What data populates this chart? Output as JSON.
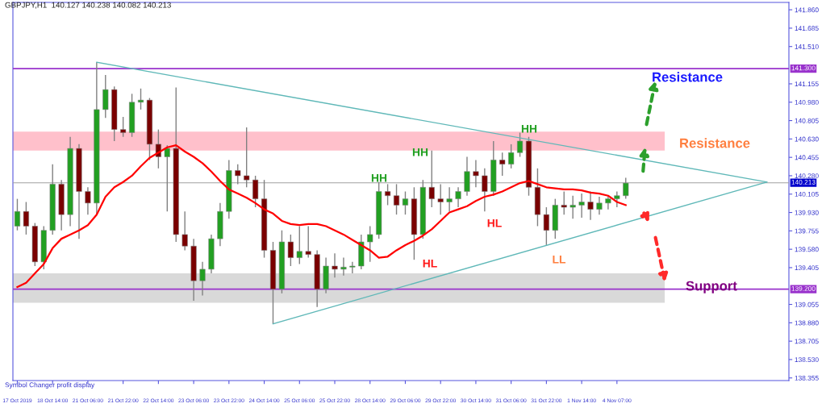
{
  "chart_data": {
    "type": "candlestick",
    "title": "GBPJPY,H1  140.127 140.238 140.082 140.213",
    "categories": [
      "17 Oct 2019",
      null,
      null,
      null,
      "18 Oct 14:00",
      null,
      null,
      null,
      "21 Oct 06:00",
      null,
      null,
      null,
      "21 Oct 22:00",
      null,
      null,
      null,
      "22 Oct 14:00",
      null,
      null,
      null,
      "23 Oct 06:00",
      null,
      null,
      null,
      "23 Oct 22:00",
      null,
      null,
      null,
      "24 Oct 14:00",
      null,
      null,
      null,
      "25 Oct 06:00",
      null,
      null,
      null,
      "25 Oct 22:00",
      null,
      null,
      null,
      "28 Oct 14:00",
      null,
      null,
      null,
      "29 Oct 06:00",
      null,
      null,
      null,
      "29 Oct 22:00",
      null,
      null,
      null,
      "30 Oct 14:00",
      null,
      null,
      null,
      "31 Oct 06:00",
      null,
      null,
      null,
      "31 Oct 22:00",
      null,
      null,
      null,
      "1 Nov 14:00",
      null,
      null,
      null,
      "4 Nov 07:00",
      null,
      null,
      null,
      null,
      null,
      null,
      null,
      null,
      null,
      null,
      null,
      null,
      null,
      null,
      null,
      null,
      null,
      null,
      null
    ],
    "ohlc": [
      [
        139.8,
        140.06,
        139.76,
        139.94
      ],
      [
        139.94,
        140.03,
        139.72,
        139.8
      ],
      [
        139.8,
        139.83,
        139.42,
        139.46
      ],
      [
        139.46,
        139.8,
        139.39,
        139.76
      ],
      [
        139.76,
        140.39,
        139.72,
        140.2
      ],
      [
        140.2,
        140.24,
        139.76,
        139.91
      ],
      [
        139.91,
        140.65,
        139.8,
        140.54
      ],
      [
        140.54,
        140.58,
        139.68,
        140.13
      ],
      [
        140.13,
        140.17,
        139.91,
        140.02
      ],
      [
        140.02,
        141.36,
        139.91,
        140.91
      ],
      [
        140.91,
        141.24,
        140.83,
        141.1
      ],
      [
        141.1,
        141.13,
        140.61,
        140.72
      ],
      [
        140.72,
        140.84,
        140.65,
        140.69
      ],
      [
        140.69,
        141.06,
        140.65,
        140.98
      ],
      [
        140.98,
        141.11,
        140.91,
        141.0
      ],
      [
        141.0,
        141.02,
        140.43,
        140.58
      ],
      [
        140.58,
        140.72,
        140.35,
        140.46
      ],
      [
        140.46,
        140.57,
        139.94,
        140.54
      ],
      [
        140.54,
        141.12,
        139.65,
        139.72
      ],
      [
        139.72,
        139.94,
        139.57,
        139.61
      ],
      [
        139.61,
        139.68,
        139.09,
        139.28
      ],
      [
        139.28,
        139.46,
        139.14,
        139.39
      ],
      [
        139.39,
        139.72,
        139.35,
        139.68
      ],
      [
        139.68,
        140.02,
        139.61,
        139.94
      ],
      [
        139.94,
        140.43,
        139.87,
        140.33
      ],
      [
        140.33,
        140.39,
        140.2,
        140.28
      ],
      [
        140.28,
        140.74,
        140.17,
        140.24
      ],
      [
        140.24,
        140.28,
        139.98,
        140.06
      ],
      [
        140.06,
        140.24,
        139.5,
        139.57
      ],
      [
        139.57,
        139.65,
        138.87,
        139.2
      ],
      [
        139.2,
        139.76,
        139.16,
        139.65
      ],
      [
        139.65,
        139.72,
        139.42,
        139.5
      ],
      [
        139.5,
        139.8,
        139.44,
        139.56
      ],
      [
        139.56,
        139.8,
        139.5,
        139.53
      ],
      [
        139.53,
        139.57,
        139.03,
        139.2
      ],
      [
        139.2,
        139.5,
        139.16,
        139.42
      ],
      [
        139.42,
        139.54,
        139.31,
        139.39
      ],
      [
        139.39,
        139.5,
        139.33,
        139.41
      ],
      [
        139.41,
        139.46,
        139.35,
        139.42
      ],
      [
        139.42,
        139.72,
        139.39,
        139.65
      ],
      [
        139.65,
        139.8,
        139.46,
        139.72
      ],
      [
        139.72,
        140.22,
        139.68,
        140.13
      ],
      [
        140.13,
        140.2,
        140.0,
        140.09
      ],
      [
        140.09,
        140.2,
        139.91,
        140.0
      ],
      [
        140.0,
        140.13,
        139.91,
        140.06
      ],
      [
        140.06,
        140.17,
        139.48,
        139.72
      ],
      [
        139.72,
        140.24,
        139.68,
        140.17
      ],
      [
        140.17,
        140.52,
        139.98,
        140.06
      ],
      [
        140.06,
        140.2,
        139.91,
        140.03
      ],
      [
        140.03,
        140.17,
        139.94,
        140.06
      ],
      [
        140.06,
        140.17,
        139.98,
        140.13
      ],
      [
        140.13,
        140.46,
        140.09,
        140.32
      ],
      [
        140.32,
        140.43,
        140.17,
        140.28
      ],
      [
        140.28,
        140.35,
        139.94,
        140.13
      ],
      [
        140.13,
        140.61,
        140.09,
        140.43
      ],
      [
        140.43,
        140.5,
        140.28,
        140.39
      ],
      [
        140.39,
        140.58,
        140.35,
        140.5
      ],
      [
        140.5,
        140.69,
        140.46,
        140.61
      ],
      [
        140.61,
        140.65,
        140.09,
        140.17
      ],
      [
        140.17,
        140.35,
        139.8,
        139.91
      ],
      [
        139.91,
        139.98,
        139.62,
        139.76
      ],
      [
        139.76,
        140.06,
        139.68,
        140.0
      ],
      [
        140.0,
        140.13,
        139.91,
        139.98
      ],
      [
        139.98,
        140.09,
        139.87,
        140.0
      ],
      [
        140.0,
        140.11,
        139.88,
        140.03
      ],
      [
        140.03,
        140.13,
        139.86,
        139.96
      ],
      [
        139.96,
        140.08,
        139.91,
        140.02
      ],
      [
        140.02,
        140.09,
        139.96,
        140.06
      ],
      [
        140.06,
        140.13,
        139.98,
        140.09
      ],
      [
        140.09,
        140.26,
        140.06,
        140.21
      ],
      null,
      null,
      null,
      null,
      null,
      null,
      null,
      null,
      null,
      null,
      null,
      null,
      null,
      null,
      null,
      null,
      null,
      null
    ],
    "series": [
      {
        "type": "line",
        "color": "#ff0000",
        "values": [
          139.22,
          139.26,
          139.35,
          139.44,
          139.59,
          139.68,
          139.72,
          139.76,
          139.81,
          139.91,
          140.08,
          140.17,
          140.22,
          140.28,
          140.37,
          140.45,
          140.5,
          140.55,
          140.57,
          140.51,
          140.46,
          140.4,
          140.32,
          140.23,
          140.15,
          140.11,
          140.07,
          140.02,
          139.96,
          139.92,
          139.85,
          139.82,
          139.81,
          139.82,
          139.82,
          139.8,
          139.76,
          139.72,
          139.67,
          139.62,
          139.57,
          139.5,
          139.51,
          139.57,
          139.62,
          139.66,
          139.71,
          139.77,
          139.85,
          139.93,
          139.96,
          139.99,
          140.04,
          140.08,
          140.1,
          140.13,
          140.17,
          140.21,
          140.23,
          140.2,
          140.17,
          140.16,
          140.15,
          140.15,
          140.14,
          140.12,
          140.11,
          140.09,
          140.03,
          140.0,
          null,
          null,
          null,
          null,
          null,
          null,
          null,
          null,
          null,
          null,
          null,
          null,
          null,
          null,
          null,
          null,
          null,
          null
        ]
      },
      {
        "type": "line",
        "color": "#5fb8b8",
        "values": [
          null,
          null,
          null,
          null,
          null,
          null,
          null,
          null,
          null,
          141.36,
          null,
          null,
          null,
          null,
          null,
          null,
          null,
          null,
          null,
          null,
          null,
          null,
          null,
          null,
          null,
          null,
          null,
          null,
          null,
          null,
          null,
          null,
          null,
          null,
          null,
          null,
          null,
          null,
          null,
          null,
          null,
          null,
          null,
          null,
          null,
          null,
          null,
          null,
          null,
          null,
          null,
          null,
          null,
          null,
          null,
          null,
          null,
          null,
          null,
          null,
          null,
          null,
          null,
          null,
          null,
          null,
          null,
          null,
          null,
          null,
          null,
          null,
          null,
          null,
          null,
          null,
          null,
          null,
          null,
          null,
          null,
          null,
          null,
          null,
          null,
          140.22,
          null,
          null
        ]
      },
      {
        "type": "line",
        "color": "#5fb8b8",
        "values": [
          null,
          null,
          null,
          null,
          null,
          null,
          null,
          null,
          null,
          null,
          null,
          null,
          null,
          null,
          null,
          null,
          null,
          null,
          null,
          null,
          null,
          null,
          null,
          null,
          null,
          null,
          null,
          null,
          null,
          138.87,
          null,
          null,
          null,
          null,
          null,
          null,
          null,
          null,
          null,
          null,
          null,
          null,
          null,
          null,
          null,
          null,
          null,
          null,
          null,
          null,
          null,
          null,
          null,
          null,
          null,
          null,
          null,
          null,
          null,
          null,
          null,
          null,
          null,
          null,
          null,
          null,
          null,
          null,
          null,
          null,
          null,
          null,
          null,
          null,
          null,
          null,
          null,
          null,
          null,
          null,
          null,
          null,
          null,
          null,
          null,
          140.22,
          null,
          null
        ]
      }
    ],
    "ylim": [
      138.33,
      141.93
    ],
    "yticks": [
      {
        "value": 141.86,
        "label": "141.860"
      },
      {
        "value": 141.685,
        "label": "141.685"
      },
      {
        "value": 141.51,
        "label": "141.510"
      },
      {
        "value": 141.155,
        "label": "141.155"
      },
      {
        "value": 140.98,
        "label": "140.980"
      },
      {
        "value": 140.805,
        "label": "140.805"
      },
      {
        "value": 140.63,
        "label": "140.630"
      },
      {
        "value": 140.455,
        "label": "140.455"
      },
      {
        "value": 140.28,
        "label": "140.280"
      },
      {
        "value": 140.105,
        "label": "140.105"
      },
      {
        "value": 139.93,
        "label": "139.930"
      },
      {
        "value": 139.755,
        "label": "139.755"
      },
      {
        "value": 139.58,
        "label": "139.580"
      },
      {
        "value": 139.405,
        "label": "139.405"
      },
      {
        "value": 139.055,
        "label": "139.055"
      },
      {
        "value": 138.88,
        "label": "138.880"
      },
      {
        "value": 138.705,
        "label": "138.705"
      },
      {
        "value": 138.53,
        "label": "138.530"
      },
      {
        "value": 138.355,
        "label": "138.355"
      }
    ],
    "ref_lines": [
      {
        "axis": "y",
        "value": 141.3,
        "label": "141.300",
        "color": "#9932cc"
      },
      {
        "axis": "y",
        "value": 139.2,
        "label": "139.200",
        "color": "#9932cc"
      },
      {
        "axis": "y",
        "value": 140.213,
        "label": "140.213",
        "color": "#a0a0a0"
      }
    ],
    "bands": [
      {
        "axis": "y",
        "from": 140.52,
        "to": 140.7,
        "color": "#ffc0cb"
      },
      {
        "axis": "y",
        "from": 139.07,
        "to": 139.35,
        "color": "#d9d9d9"
      }
    ],
    "annotations": [
      "Resistance",
      "Resistance",
      "Support",
      "HH",
      "HH",
      "HH",
      "HL",
      "HL",
      "LL",
      "Symbol Changer profit display"
    ],
    "grid": false,
    "legend": false
  }
}
